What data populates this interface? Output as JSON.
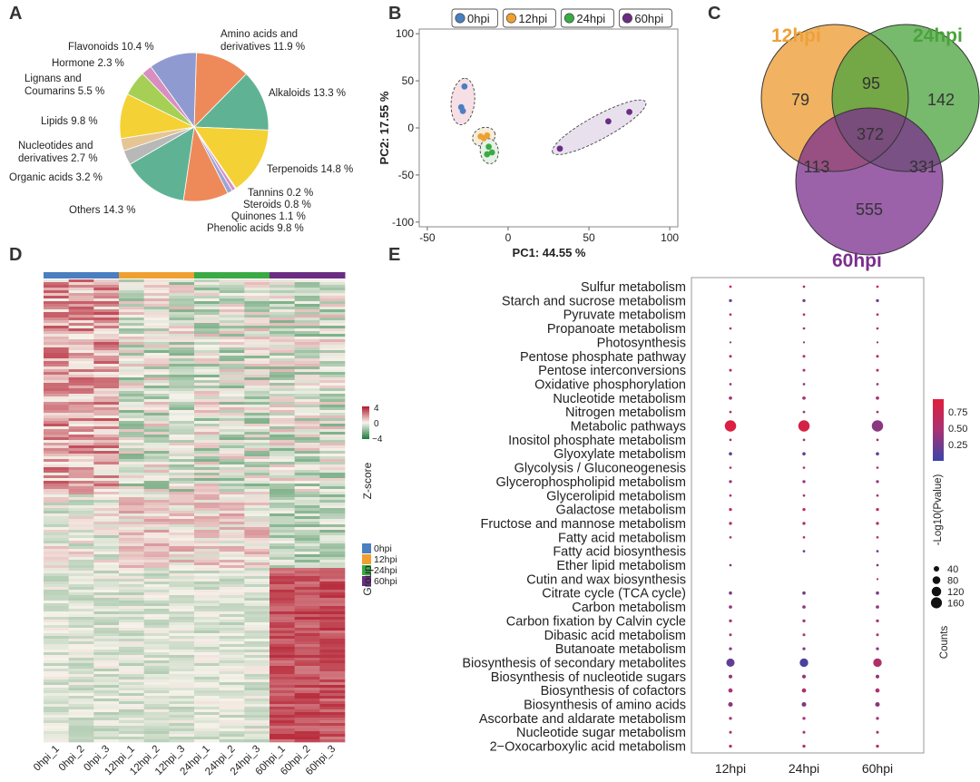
{
  "panel_labels": {
    "a": "A",
    "b": "B",
    "c": "C",
    "d": "D",
    "e": "E"
  },
  "chart_data": [
    {
      "panel": "A",
      "type": "pie",
      "slices": [
        {
          "label": "Amino acids and derivatives",
          "pct": "11.9 %",
          "value": 11.9,
          "color": "#ee8a5a"
        },
        {
          "label": "Alkaloids",
          "pct": "13.3 %",
          "value": 13.3,
          "color": "#5fb394"
        },
        {
          "label": "Terpenoids",
          "pct": "14.8 %",
          "value": 14.8,
          "color": "#f4d135"
        },
        {
          "label": "Tannins",
          "pct": "0.2 %",
          "value": 0.2,
          "color": "#b8b8b8"
        },
        {
          "label": "Steroids",
          "pct": "0.8 %",
          "value": 0.8,
          "color": "#d88fbf"
        },
        {
          "label": "Quinones",
          "pct": "1.1 %",
          "value": 1.1,
          "color": "#9aa5d6"
        },
        {
          "label": "Phenolic acids",
          "pct": "9.8 %",
          "value": 9.8,
          "color": "#ee8a5a"
        },
        {
          "label": "Others",
          "pct": "14.3 %",
          "value": 14.3,
          "color": "#5fb394"
        },
        {
          "label": "Organic acids",
          "pct": "3.2 %",
          "value": 3.2,
          "color": "#b8b8b8"
        },
        {
          "label": "Nucleotides and derivatives",
          "pct": "2.7 %",
          "value": 2.7,
          "color": "#e5c594"
        },
        {
          "label": "Lipids",
          "pct": "9.8 %",
          "value": 9.8,
          "color": "#f4d135"
        },
        {
          "label": "Lignans and Coumarins",
          "pct": "5.5 %",
          "value": 5.5,
          "color": "#a6d055"
        },
        {
          "label": "Hormone",
          "pct": "2.3 %",
          "value": 2.3,
          "color": "#d88fbf"
        },
        {
          "label": "Flavonoids",
          "pct": "10.4 %",
          "value": 10.4,
          "color": "#8f9bd0"
        }
      ],
      "label_lines": {
        "amino": [
          "Amino acids and",
          "derivatives 11.9 %"
        ],
        "alkaloids": "Alkaloids 13.3 %",
        "terpenoids": "Terpenoids 14.8 %",
        "tannins": "Tannins 0.2 %",
        "steroids": "Steroids 0.8 %",
        "quinones": "Quinones 1.1 %",
        "phenolic": "Phenolic acids 9.8 %",
        "others": "Others 14.3 %",
        "organic": "Organic acids 3.2 %",
        "nucleotides": [
          "Nucleotides and",
          "derivatives 2.7 %"
        ],
        "lipids": "Lipids 9.8 %",
        "lignans": [
          "Lignans and",
          "Coumarins 5.5 %"
        ],
        "hormone": "Hormone 2.3 %",
        "flavonoids": "Flavonoids 10.4 %"
      }
    },
    {
      "panel": "B",
      "type": "scatter",
      "xlabel": "PC1: 44.55 %",
      "ylabel": "PC2: 17.55 %",
      "xlim": [
        -55,
        105
      ],
      "ylim": [
        -105,
        105
      ],
      "xticks": [
        -50,
        0,
        50,
        100
      ],
      "yticks": [
        -100,
        -50,
        0,
        50,
        100
      ],
      "legend": [
        {
          "name": "0hpi",
          "color": "#4a7fc1"
        },
        {
          "name": "12hpi",
          "color": "#f0a030"
        },
        {
          "name": "24hpi",
          "color": "#3aaa45"
        },
        {
          "name": "60hpi",
          "color": "#6a2d82"
        }
      ],
      "series": [
        {
          "name": "0hpi",
          "color": "#4a7fc1",
          "points": [
            [
              -27,
              44
            ],
            [
              -29,
              22
            ],
            [
              -28,
              18
            ]
          ]
        },
        {
          "name": "12hpi",
          "color": "#f0a030",
          "points": [
            [
              -17,
              -9
            ],
            [
              -15,
              -11
            ],
            [
              -13,
              -8
            ]
          ]
        },
        {
          "name": "24hpi",
          "color": "#3aaa45",
          "points": [
            [
              -12,
              -20
            ],
            [
              -10,
              -26
            ],
            [
              -13,
              -28
            ]
          ]
        },
        {
          "name": "60hpi",
          "color": "#6a2d82",
          "points": [
            [
              32,
              -22
            ],
            [
              62,
              7
            ],
            [
              75,
              17
            ]
          ]
        }
      ],
      "ellipse_fill": [
        "#f7dfe6",
        "#f6ecd8",
        "#e5f2e5",
        "#e9e0ee"
      ]
    },
    {
      "panel": "C",
      "type": "venn",
      "sets": [
        {
          "name": "12hpi",
          "color": "#eea03a"
        },
        {
          "name": "24hpi",
          "color": "#4aa33c"
        },
        {
          "name": "60hpi",
          "color": "#7a2e8e"
        }
      ],
      "regions": {
        "only_12": 79,
        "only_24": 142,
        "only_60": 555,
        "r12_24": 95,
        "r12_60": 113,
        "r24_60": 331,
        "all": 372
      }
    },
    {
      "panel": "D",
      "type": "heatmap",
      "columns": [
        "0hpi_1",
        "0hpi_2",
        "0hpi_3",
        "12hpi_1",
        "12hpi_2",
        "12hpi_3",
        "24hpi_1",
        "24hpi_2",
        "24hpi_3",
        "60hpi_1",
        "60hpi_2",
        "60hpi_3"
      ],
      "groups": [
        {
          "name": "0hpi",
          "color": "#4a7fc1"
        },
        {
          "name": "12hpi",
          "color": "#f0a030"
        },
        {
          "name": "24hpi",
          "color": "#3aaa45"
        },
        {
          "name": "60hpi",
          "color": "#6a2d82"
        }
      ],
      "scale": {
        "title": "Z-score",
        "ticks": [
          "4",
          "0",
          "−4"
        ],
        "high": "#b2182b",
        "mid": "#f7f4ec",
        "low": "#1b7a3a"
      },
      "group_legend_title": "Group"
    },
    {
      "panel": "E",
      "type": "scatter",
      "columns": [
        "12hpi",
        "24hpi",
        "60hpi"
      ],
      "pathways": [
        "Sulfur metabolism",
        "Starch and sucrose metabolism",
        "Pyruvate metabolism",
        "Propanoate metabolism",
        "Photosynthesis",
        "Pentose phosphate pathway",
        "Pentose interconversions",
        "Oxidative phosphorylation",
        "Nucleotide metabolism",
        "Nitrogen metabolism",
        "Metabolic pathways",
        "Inositol phosphate metabolism",
        "Glyoxylate metabolism",
        "Glycolysis / Gluconeogenesis",
        "Glycerophospholipid metabolism",
        "Glycerolipid metabolism",
        "Galactose metabolism",
        "Fructose and mannose metabolism",
        "Fatty acid metabolism",
        "Fatty acid biosynthesis",
        "Ether lipid metabolism",
        "Cutin and wax biosynthesis",
        "Citrate cycle (TCA cycle)",
        "Carbon metabolism",
        "Carbon fixation by Calvin cycle",
        "Dibasic acid metabolism",
        "Butanoate metabolism",
        "Biosynthesis of secondary metabolites",
        "Biosynthesis of nucleotide sugars",
        "Biosynthesis of cofactors",
        "Biosynthesis of amino acids",
        "Ascorbate and aldarate metabolism",
        "Nucleotide sugar metabolism",
        "2−Oxocarboxylic acid metabolism"
      ],
      "counts": [
        [
          8,
          8,
          8
        ],
        [
          12,
          12,
          12
        ],
        [
          8,
          8,
          8
        ],
        [
          8,
          8,
          8
        ],
        [
          5,
          5,
          5
        ],
        [
          10,
          10,
          10
        ],
        [
          10,
          10,
          10
        ],
        [
          8,
          8,
          8
        ],
        [
          15,
          15,
          15
        ],
        [
          8,
          8,
          8
        ],
        [
          170,
          170,
          170
        ],
        [
          8,
          8,
          8
        ],
        [
          14,
          14,
          14
        ],
        [
          8,
          8,
          8
        ],
        [
          12,
          12,
          12
        ],
        [
          8,
          8,
          8
        ],
        [
          12,
          12,
          12
        ],
        [
          12,
          12,
          12
        ],
        [
          8,
          8,
          8
        ],
        [
          0,
          8,
          8
        ],
        [
          8,
          0,
          8
        ],
        [
          0,
          0,
          5
        ],
        [
          14,
          14,
          14
        ],
        [
          15,
          15,
          15
        ],
        [
          12,
          12,
          12
        ],
        [
          10,
          10,
          10
        ],
        [
          12,
          12,
          12
        ],
        [
          90,
          95,
          95
        ],
        [
          18,
          18,
          18
        ],
        [
          24,
          24,
          24
        ],
        [
          28,
          28,
          28
        ],
        [
          12,
          12,
          12
        ],
        [
          10,
          10,
          10
        ],
        [
          12,
          12,
          12
        ]
      ],
      "pvalue": [
        [
          0.78,
          0.55,
          0.78
        ],
        [
          0.3,
          0.3,
          0.3
        ],
        [
          0.7,
          0.7,
          0.7
        ],
        [
          0.5,
          0.5,
          0.5
        ],
        [
          0.4,
          0.4,
          0.4
        ],
        [
          0.6,
          0.6,
          0.6
        ],
        [
          0.62,
          0.55,
          0.6
        ],
        [
          0.4,
          0.4,
          0.4
        ],
        [
          0.5,
          0.5,
          0.5
        ],
        [
          0.5,
          0.5,
          0.5
        ],
        [
          0.82,
          0.78,
          0.4
        ],
        [
          0.5,
          0.5,
          0.5
        ],
        [
          0.3,
          0.3,
          0.3
        ],
        [
          0.6,
          0.6,
          0.6
        ],
        [
          0.45,
          0.45,
          0.45
        ],
        [
          0.5,
          0.5,
          0.5
        ],
        [
          0.68,
          0.68,
          0.68
        ],
        [
          0.55,
          0.55,
          0.55
        ],
        [
          0.6,
          0.6,
          0.6
        ],
        [
          0.5,
          0.3,
          0.3
        ],
        [
          0.4,
          0.4,
          0.4
        ],
        [
          0.5,
          0.5,
          0.6
        ],
        [
          0.35,
          0.3,
          0.35
        ],
        [
          0.45,
          0.45,
          0.45
        ],
        [
          0.5,
          0.5,
          0.5
        ],
        [
          0.5,
          0.5,
          0.5
        ],
        [
          0.4,
          0.4,
          0.4
        ],
        [
          0.28,
          0.2,
          0.55
        ],
        [
          0.45,
          0.45,
          0.45
        ],
        [
          0.55,
          0.55,
          0.55
        ],
        [
          0.4,
          0.35,
          0.4
        ],
        [
          0.5,
          0.5,
          0.5
        ],
        [
          0.5,
          0.5,
          0.5
        ],
        [
          0.6,
          0.6,
          0.6
        ]
      ],
      "pvalue_legend": {
        "title": "-Log10(Pvalue)",
        "ticks": [
          "0.75",
          "0.50",
          "0.25"
        ],
        "range": [
          0.15,
          0.85
        ]
      },
      "counts_legend": {
        "title": "Counts",
        "ticks": [
          "40",
          "80",
          "120",
          "160"
        ]
      }
    }
  ]
}
